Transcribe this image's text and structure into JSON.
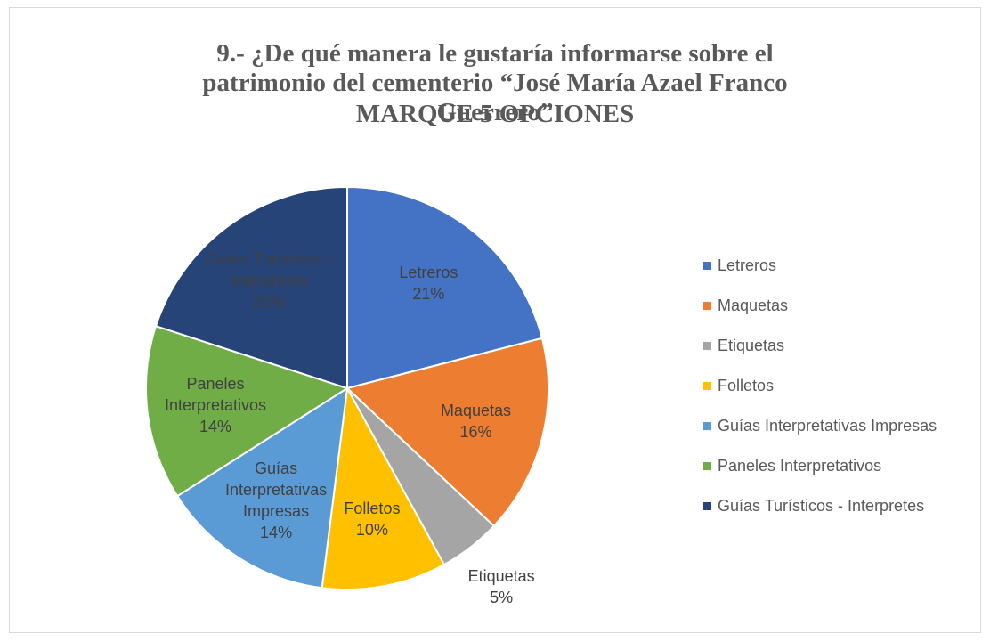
{
  "chart_data": {
    "type": "pie",
    "title": "9.- ¿De qué manera le gustaría informarse sobre el patrimonio del cementerio “José María Azael Franco Guerrero”",
    "subtitle": "MARQUE  5 OPCIONES",
    "categories": [
      "Letreros",
      "Maquetas",
      "Etiquetas",
      "Folletos",
      "Guías Interpretativas Impresas",
      "Paneles Interpretativos",
      "Guías Turísticos - Interpretes"
    ],
    "values": [
      21,
      16,
      5,
      10,
      14,
      14,
      20
    ],
    "value_labels": [
      "21%",
      "16%",
      "5%",
      "10%",
      "14%",
      "14%",
      "20%"
    ],
    "colors": [
      "#4472c4",
      "#ed7d31",
      "#a5a5a5",
      "#ffc000",
      "#5b9bd5",
      "#70ad47",
      "#264478"
    ],
    "legend": "right"
  }
}
